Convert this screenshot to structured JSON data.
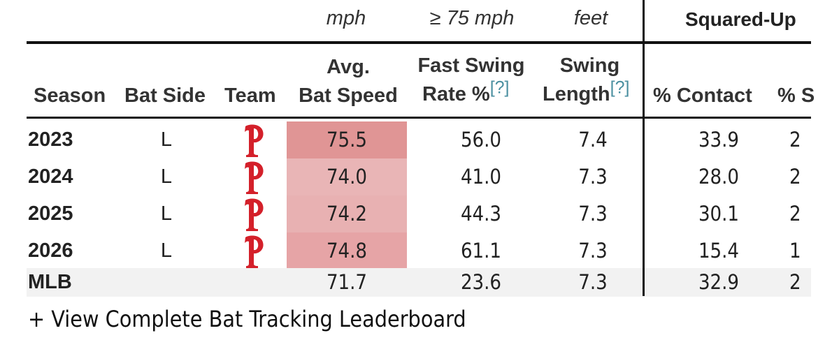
{
  "units": {
    "bat_speed": "mph",
    "fast_swing": "≥ 75 mph",
    "swing_length": "feet"
  },
  "group_header": "Squared-Up",
  "headers": {
    "season": "Season",
    "bat_side": "Bat Side",
    "team": "Team",
    "bat_speed_line1": "Avg.",
    "bat_speed_line2": "Bat Speed",
    "fast_swing_line1": "Fast Swing",
    "fast_swing_line2": "Rate %",
    "swing_length_line1": "Swing",
    "swing_length_line2": "Length",
    "help": "[?]",
    "contact": "% Contact",
    "sq_partial": "% S"
  },
  "rows": [
    {
      "season": "2023",
      "bat_side": "L",
      "team_logo": "phillies-p-logo",
      "bat_speed": "75.5",
      "fast_swing_rate": "56.0",
      "swing_length": "7.4",
      "contact": "33.9",
      "sq": "2",
      "bat_speed_color": "#e09595"
    },
    {
      "season": "2024",
      "bat_side": "L",
      "team_logo": "phillies-p-logo",
      "bat_speed": "74.0",
      "fast_swing_rate": "41.0",
      "swing_length": "7.3",
      "contact": "28.0",
      "sq": "2",
      "bat_speed_color": "#e9b5b6"
    },
    {
      "season": "2025",
      "bat_side": "L",
      "team_logo": "phillies-p-logo",
      "bat_speed": "74.2",
      "fast_swing_rate": "44.3",
      "swing_length": "7.3",
      "contact": "30.1",
      "sq": "2",
      "bat_speed_color": "#e8b1b2"
    },
    {
      "season": "2026",
      "bat_side": "L",
      "team_logo": "phillies-p-logo",
      "bat_speed": "74.8",
      "fast_swing_rate": "61.1",
      "swing_length": "7.3",
      "contact": "15.4",
      "sq": "1",
      "bat_speed_color": "#e6a4a6"
    }
  ],
  "mlb_row": {
    "season": "MLB",
    "bat_speed": "71.7",
    "fast_swing_rate": "23.6",
    "swing_length": "7.3",
    "contact": "32.9",
    "sq": "2"
  },
  "footer_link": "+ View Complete Bat Tracking Leaderboard",
  "colors": {
    "phillies_red": "#d4202a",
    "help_link": "#4a8fa0",
    "mlb_row_bg": "#f2f2f2"
  }
}
